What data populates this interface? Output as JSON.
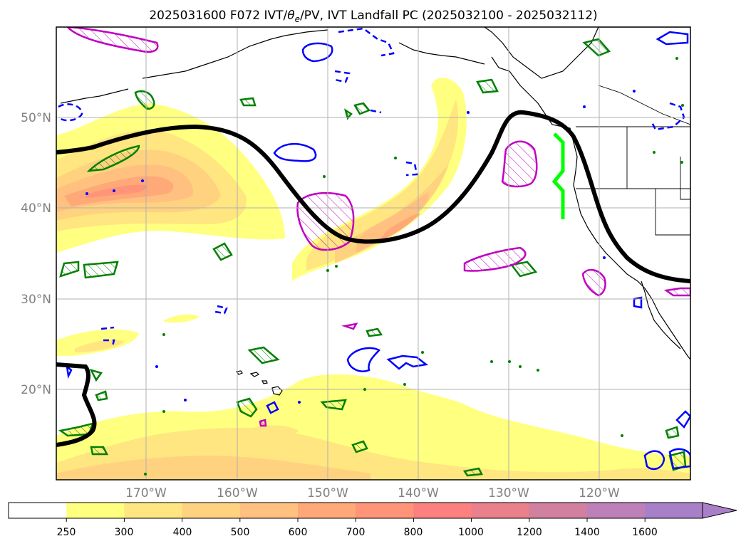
{
  "title": {
    "main": "2025031600 F072 IVT/",
    "theta": "θ",
    "sub_e": "e",
    "rest": "/PV, IVT Landfall PC (2025032100 - 2025032112)"
  },
  "map": {
    "lat_labels": [
      "50°N",
      "40°N",
      "30°N",
      "20°N"
    ],
    "lon_labels": [
      "170°W",
      "160°W",
      "150°W",
      "140°W",
      "130°W",
      "120°W"
    ],
    "gridlines": true,
    "projection": "PlateCarree",
    "extent": {
      "lon": [
        -180,
        -110
      ],
      "lat": [
        10,
        60
      ]
    }
  },
  "colorbar": {
    "ticks": [
      "250",
      "300",
      "400",
      "500",
      "600",
      "700",
      "800",
      "1000",
      "1200",
      "1400",
      "1600"
    ],
    "colors": [
      "#ffffff",
      "#ffff80",
      "#ffe680",
      "#ffd280",
      "#ffc080",
      "#ffa878",
      "#ff9478",
      "#fc8080",
      "#e9808c",
      "#d280a0",
      "#bd80b8",
      "#a880c8"
    ],
    "extend": "max"
  },
  "contour_colors": {
    "theta_e": "#000000",
    "pv_positive": "#008000",
    "pv_blue": "#0000ff",
    "pv_magenta": "#c000c0",
    "landfall": "#00ff00",
    "coast": "#000000"
  }
}
